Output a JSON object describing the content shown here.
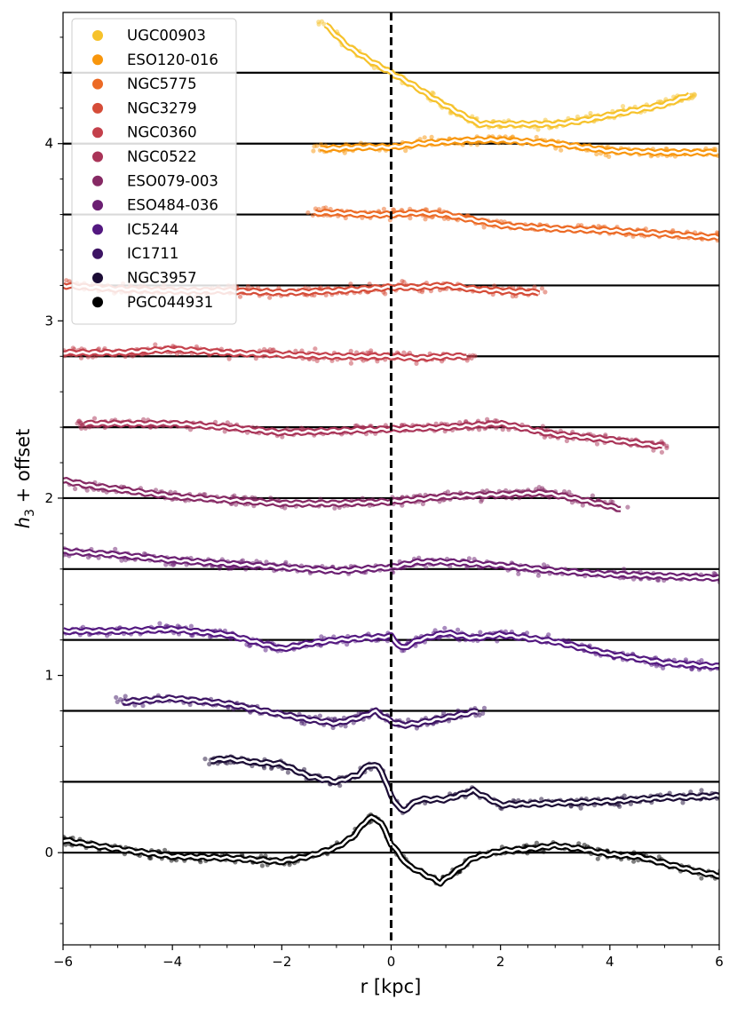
{
  "chart_data": {
    "type": "line",
    "title": "",
    "xlabel": "r [kpc]",
    "ylabel_main": "h",
    "ylabel_sub": "3",
    "ylabel_rest": " + offset",
    "xlim": [
      -6,
      6
    ],
    "ylim": [
      -0.52,
      4.74
    ],
    "xticks": [
      -6,
      -4,
      -2,
      0,
      2,
      4,
      6
    ],
    "xtick_labels": [
      "−6",
      "−4",
      "−2",
      "0",
      "2",
      "4",
      "6"
    ],
    "yticks": [
      0,
      1,
      2,
      3,
      4
    ],
    "ytick_labels": [
      "0",
      "1",
      "2",
      "3",
      "4"
    ],
    "center_line_x": 0,
    "legend_position": "upper-left",
    "series": [
      {
        "name": "UGC00903",
        "color": "#f6c22b",
        "offset": 4.4,
        "x": [
          -1.2,
          -0.8,
          -0.4,
          0,
          0.4,
          0.8,
          1.2,
          1.6,
          2.0,
          2.5,
          3.0,
          3.5,
          4.0,
          4.5,
          5.0,
          5.5
        ],
        "y": [
          0.27,
          0.15,
          0.07,
          0.0,
          -0.07,
          -0.15,
          -0.22,
          -0.29,
          -0.29,
          -0.29,
          -0.29,
          -0.27,
          -0.24,
          -0.21,
          -0.18,
          -0.12
        ]
      },
      {
        "name": "ESO120-016",
        "color": "#f8960c",
        "offset": 4.0,
        "x": [
          -1.3,
          -0.5,
          0,
          0.5,
          1.0,
          1.5,
          2.0,
          3.0,
          4.0,
          5.0,
          6.0
        ],
        "y": [
          -0.03,
          -0.02,
          -0.02,
          0.0,
          0.01,
          0.02,
          0.02,
          0.0,
          -0.04,
          -0.05,
          -0.05
        ]
      },
      {
        "name": "NGC5775",
        "color": "#ec6a25",
        "offset": 3.6,
        "x": [
          -1.4,
          -1.0,
          -0.5,
          0,
          0.5,
          1.0,
          1.5,
          2.0,
          3.0,
          4.0,
          5.0,
          6.0
        ],
        "y": [
          0.01,
          0.01,
          0.0,
          0.0,
          0.01,
          0.0,
          -0.03,
          -0.06,
          -0.08,
          -0.09,
          -0.11,
          -0.13
        ]
      },
      {
        "name": "NGC3279",
        "color": "#d54c38",
        "offset": 3.2,
        "x": [
          -6,
          -5,
          -4,
          -3,
          -2,
          -1,
          -0.5,
          0,
          0.5,
          1.0,
          1.5,
          2.0,
          2.7
        ],
        "y": [
          0.0,
          -0.02,
          -0.03,
          -0.03,
          -0.04,
          -0.03,
          -0.02,
          -0.01,
          -0.01,
          0.0,
          -0.02,
          -0.03,
          -0.04
        ]
      },
      {
        "name": "NGC0360",
        "color": "#c4404b",
        "offset": 2.8,
        "x": [
          -6,
          -5,
          -4,
          -3,
          -2,
          -1,
          0,
          0.5,
          1.0,
          1.4
        ],
        "y": [
          0.02,
          0.02,
          0.04,
          0.02,
          0.01,
          0.0,
          0.0,
          -0.01,
          0.0,
          0.0
        ]
      },
      {
        "name": "NGC0522",
        "color": "#a93458",
        "offset": 2.4,
        "x": [
          -5.6,
          -5,
          -4,
          -3,
          -2,
          -1,
          0,
          1,
          2,
          3,
          4,
          5
        ],
        "y": [
          0.02,
          0.02,
          0.02,
          0.0,
          -0.03,
          -0.02,
          -0.01,
          0.0,
          0.02,
          -0.04,
          -0.07,
          -0.11
        ]
      },
      {
        "name": "ESO079-003",
        "color": "#862964",
        "offset": 2.0,
        "x": [
          -6,
          -5.5,
          -5,
          -4,
          -3,
          -2,
          -1,
          0,
          1,
          2,
          2.8,
          3.5,
          4.2
        ],
        "y": [
          0.1,
          0.07,
          0.05,
          0.01,
          -0.01,
          -0.03,
          -0.03,
          -0.02,
          0.01,
          0.02,
          0.03,
          -0.01,
          -0.06
        ]
      },
      {
        "name": "ESO484-036",
        "color": "#6b1f72",
        "offset": 1.6,
        "x": [
          -6,
          -5,
          -4,
          -3,
          -2,
          -1,
          0,
          0.5,
          1.0,
          2.0,
          3.0,
          4.0,
          5.0,
          6.0
        ],
        "y": [
          0.1,
          0.08,
          0.05,
          0.03,
          0.01,
          -0.01,
          0.01,
          0.04,
          0.04,
          0.02,
          -0.01,
          -0.03,
          -0.04,
          -0.05
        ]
      },
      {
        "name": "IC5244",
        "color": "#531880",
        "offset": 1.2,
        "x": [
          -6,
          -5,
          -4,
          -3,
          -2,
          -1.5,
          -1,
          -0.5,
          0,
          0.2,
          0.5,
          1.0,
          1.5,
          2.0,
          3.0,
          4.0,
          5.0,
          6.0
        ],
        "y": [
          0.05,
          0.05,
          0.06,
          0.03,
          -0.05,
          -0.02,
          0.0,
          0.01,
          0.02,
          -0.05,
          0.0,
          0.04,
          0.01,
          0.03,
          -0.01,
          -0.08,
          -0.13,
          -0.15
        ]
      },
      {
        "name": "IC1711",
        "color": "#3d1464",
        "offset": 0.8,
        "x": [
          -4.9,
          -4,
          -3,
          -2,
          -1.5,
          -1,
          -0.5,
          -0.3,
          0,
          0.2,
          0.5,
          1.0,
          1.6
        ],
        "y": [
          0.05,
          0.07,
          0.04,
          -0.02,
          -0.05,
          -0.07,
          -0.03,
          0.0,
          -0.06,
          -0.08,
          -0.07,
          -0.04,
          0.0
        ]
      },
      {
        "name": "NGC3957",
        "color": "#1b0c35",
        "offset": 0.4,
        "x": [
          -3.3,
          -3,
          -2.5,
          -2,
          -1.5,
          -1,
          -0.6,
          -0.4,
          -0.2,
          0,
          0.2,
          0.5,
          1.0,
          1.5,
          2.0,
          3.0,
          4.0,
          5.0,
          6.0
        ],
        "y": [
          0.12,
          0.13,
          0.11,
          0.1,
          0.03,
          0.0,
          0.04,
          0.1,
          0.08,
          -0.08,
          -0.17,
          -0.1,
          -0.1,
          -0.05,
          -0.13,
          -0.12,
          -0.11,
          -0.09,
          -0.08
        ]
      },
      {
        "name": "PGC044931",
        "color": "#000000",
        "offset": 0.0,
        "x": [
          -6,
          -5,
          -4,
          -3,
          -2,
          -1.5,
          -1,
          -0.7,
          -0.4,
          -0.2,
          0,
          0.3,
          0.6,
          0.9,
          1.2,
          1.5,
          2.0,
          2.5,
          3.0,
          3.5,
          4.0,
          4.5,
          5.0,
          5.5,
          6.0
        ],
        "y": [
          0.07,
          0.02,
          -0.02,
          -0.03,
          -0.05,
          -0.02,
          0.03,
          0.09,
          0.2,
          0.18,
          0.05,
          -0.07,
          -0.12,
          -0.17,
          -0.1,
          -0.03,
          0.01,
          0.02,
          0.04,
          0.02,
          -0.01,
          -0.02,
          -0.06,
          -0.1,
          -0.13
        ]
      }
    ]
  }
}
